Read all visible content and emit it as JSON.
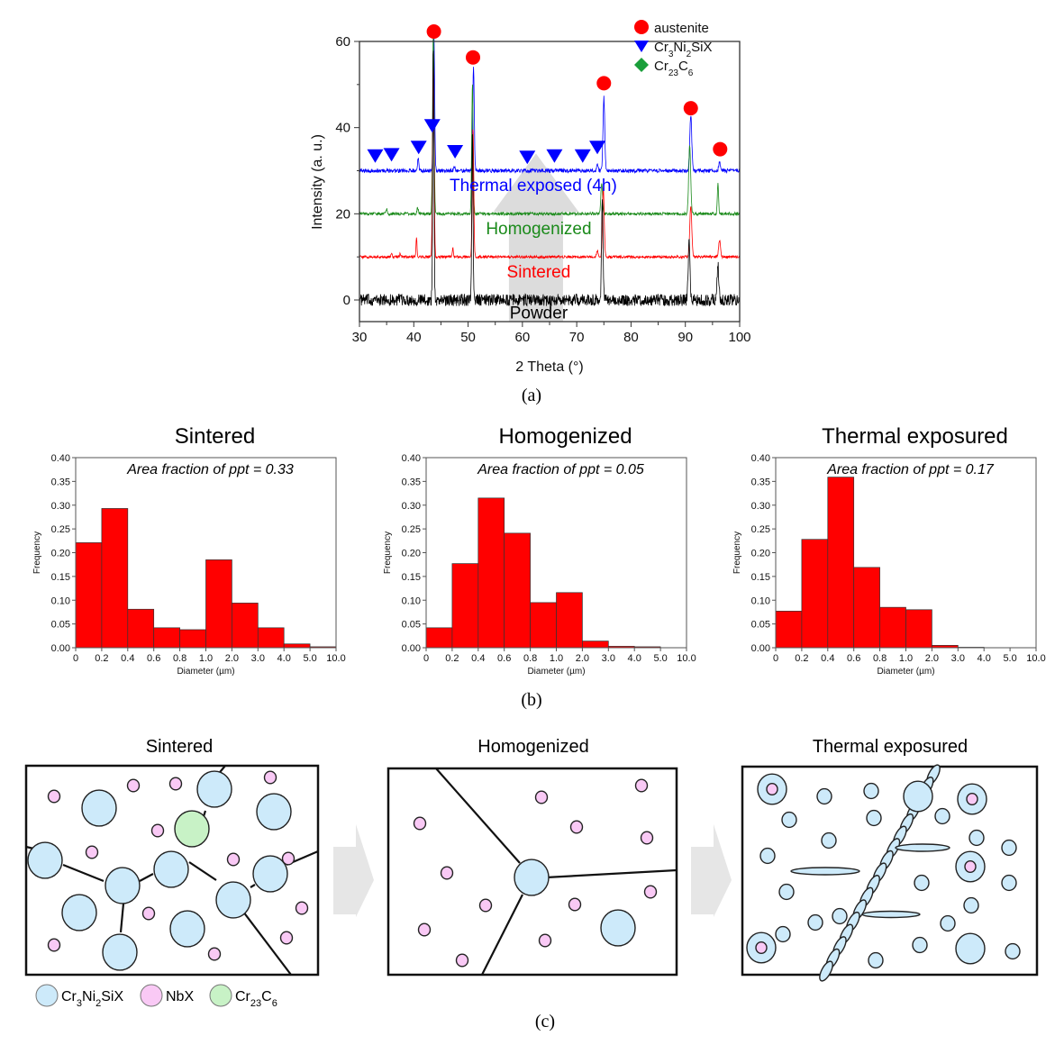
{
  "figure": {
    "captions": [
      "(a)",
      "(b)",
      "(c)"
    ]
  },
  "chart_data": [
    {
      "id": "xrd",
      "type": "line",
      "title": "",
      "xlabel": "2 Theta (°)",
      "ylabel": "Intensity (a. u.)",
      "xlim": [
        30,
        100
      ],
      "ylim": [
        -5,
        60
      ],
      "xticks": [
        30,
        40,
        50,
        60,
        70,
        80,
        90,
        100
      ],
      "yticks": [
        0,
        20,
        40,
        60
      ],
      "legend": {
        "placement": "top-right",
        "entries": [
          {
            "label": "austenite",
            "marker": "circle",
            "color": "#ff0000"
          },
          {
            "label_main": "Cr",
            "sub1": "3",
            "mid": "Ni",
            "sub2": "2",
            "tail": "SiX",
            "label": "Cr3Ni2SiX",
            "marker": "triangle-down",
            "color": "#0000ff"
          },
          {
            "label_main": "Cr",
            "sub1": "23",
            "mid": "C",
            "sub2": "6",
            "tail": "",
            "label": "Cr23C6",
            "marker": "diamond",
            "color": "#1a9e3a"
          }
        ]
      },
      "series": [
        {
          "name": "Powder",
          "color": "#000000",
          "offset": 0,
          "noise": 1.4,
          "peaks": [
            [
              43.6,
              60,
              0.25
            ],
            [
              50.8,
              40,
              0.25
            ],
            [
              74.7,
              24,
              0.3
            ],
            [
              90.7,
              14,
              0.35
            ],
            [
              96.0,
              8,
              0.35
            ]
          ]
        },
        {
          "name": "Sintered",
          "color": "#ff0000",
          "offset": 10,
          "noise": 0.3,
          "peaks": [
            [
              40.5,
              4.5,
              0.2
            ],
            [
              43.6,
              45,
              0.3
            ],
            [
              47.2,
              2,
              0.2
            ],
            [
              50.9,
              30,
              0.3
            ],
            [
              73.8,
              1.5,
              0.3
            ],
            [
              74.9,
              16,
              0.35
            ],
            [
              91.0,
              12,
              0.4
            ],
            [
              96.3,
              4,
              0.35
            ],
            [
              35.9,
              1,
              0.2
            ],
            [
              37.5,
              0.8,
              0.2
            ]
          ]
        },
        {
          "name": "Homogenized",
          "color": "#1a8a1a",
          "offset": 20,
          "noise": 0.35,
          "peaks": [
            [
              35.0,
              1,
              0.3
            ],
            [
              40.7,
              1.3,
              0.3
            ],
            [
              43.6,
              42,
              0.3
            ],
            [
              50.8,
              30,
              0.3
            ],
            [
              74.6,
              7,
              0.35
            ],
            [
              90.8,
              16,
              0.4
            ],
            [
              96.0,
              7,
              0.25
            ]
          ]
        },
        {
          "name": "Thermal exposed (4h)",
          "color": "#0000ff",
          "offset": 30,
          "noise": 0.45,
          "peaks": [
            [
              40.8,
              3,
              0.25
            ],
            [
              43.7,
              32,
              0.3
            ],
            [
              47.5,
              1,
              0.3
            ],
            [
              51.0,
              24,
              0.3
            ],
            [
              73.8,
              1.5,
              0.3
            ],
            [
              75.0,
              17,
              0.35
            ],
            [
              91.0,
              13,
              0.4
            ],
            [
              96.3,
              2,
              0.35
            ]
          ]
        }
      ],
      "series_labels": [
        {
          "text": "Thermal exposed (4h)",
          "color": "#0000ff",
          "x": 62,
          "y": 26.5
        },
        {
          "text": "Homogenized",
          "color": "#1a8a1a",
          "x": 63,
          "y": 16.5
        },
        {
          "text": "Sintered",
          "color": "#ff0000",
          "x": 63,
          "y": 6.5
        },
        {
          "text": "Powder",
          "color": "#000000",
          "x": 63,
          "y": -3
        }
      ],
      "phase_markers": {
        "austenite": [
          [
            43.7,
            62.3
          ],
          [
            50.9,
            56.3
          ],
          [
            75.0,
            50.3
          ],
          [
            91.0,
            44.5
          ],
          [
            96.4,
            35
          ]
        ],
        "Cr3Ni2SiX": [
          [
            32.9,
            33.5
          ],
          [
            35.9,
            33.8
          ],
          [
            40.9,
            35.5
          ],
          [
            43.4,
            40.5
          ],
          [
            47.6,
            34.5
          ],
          [
            60.9,
            33.2
          ],
          [
            65.9,
            33.5
          ],
          [
            71.1,
            33.5
          ],
          [
            73.8,
            35.5
          ]
        ]
      },
      "arrow": {
        "from_y": -5,
        "to_y": 34,
        "x": 62.5,
        "color": "#dcdcdc"
      }
    },
    {
      "id": "hist-sintered",
      "type": "bar",
      "title": "Sintered",
      "annotation": "Area fraction of ppt = 0.33",
      "xlabel": "Diameter (µm)",
      "ylabel": "Frequency",
      "categories": [
        "0-0.2",
        "0.2-0.4",
        "0.4-0.6",
        "0.6-0.8",
        "0.8-1.0",
        "1.0-2.0",
        "2.0-3.0",
        "3.0-4.0",
        "4.0-5.0",
        "5.0-10.0"
      ],
      "xticks": [
        "0",
        "0.2",
        "0.4",
        "0.6",
        "0.8",
        "1.0",
        "2.0",
        "3.0",
        "4.0",
        "5.0",
        "10.0"
      ],
      "values": [
        0.221,
        0.293,
        0.081,
        0.042,
        0.038,
        0.185,
        0.094,
        0.042,
        0.008,
        0.002
      ],
      "ylim": [
        0,
        0.4
      ],
      "yticks": [
        "0.00",
        "0.05",
        "0.10",
        "0.15",
        "0.20",
        "0.25",
        "0.30",
        "0.35",
        "0.40"
      ],
      "color": "#ff0000"
    },
    {
      "id": "hist-homogenized",
      "type": "bar",
      "title": "Homogenized",
      "annotation": "Area fraction of ppt = 0.05",
      "xlabel": "Diameter (µm)",
      "ylabel": "Frequency",
      "categories": [
        "0-0.2",
        "0.2-0.4",
        "0.4-0.6",
        "0.6-0.8",
        "0.8-1.0",
        "1.0-2.0",
        "2.0-3.0",
        "3.0-4.0",
        "4.0-5.0",
        "5.0-10.0"
      ],
      "xticks": [
        "0",
        "0.2",
        "0.4",
        "0.6",
        "0.8",
        "1.0",
        "2.0",
        "3.0",
        "4.0",
        "5.0",
        "10.0"
      ],
      "values": [
        0.042,
        0.177,
        0.315,
        0.241,
        0.095,
        0.116,
        0.014,
        0.003,
        0.002,
        0
      ],
      "ylim": [
        0,
        0.4
      ],
      "yticks": [
        "0.00",
        "0.05",
        "0.10",
        "0.15",
        "0.20",
        "0.25",
        "0.30",
        "0.35",
        "0.40"
      ],
      "color": "#ff0000"
    },
    {
      "id": "hist-thermal",
      "type": "bar",
      "title": "Thermal exposured",
      "annotation": "Area fraction of ppt = 0.17",
      "xlabel": "Diameter (µm)",
      "ylabel": "Frequency",
      "categories": [
        "0-0.2",
        "0.2-0.4",
        "0.4-0.6",
        "0.6-0.8",
        "0.8-1.0",
        "1.0-2.0",
        "2.0-3.0",
        "3.0-4.0",
        "4.0-5.0",
        "5.0-10.0"
      ],
      "xticks": [
        "0",
        "0.2",
        "0.4",
        "0.6",
        "0.8",
        "1.0",
        "2.0",
        "3.0",
        "4.0",
        "5.0",
        "10.0"
      ],
      "values": [
        0.077,
        0.228,
        0.359,
        0.169,
        0.085,
        0.08,
        0.005,
        0.001,
        0,
        0
      ],
      "ylim": [
        0,
        0.4
      ],
      "yticks": [
        "0.00",
        "0.05",
        "0.10",
        "0.15",
        "0.20",
        "0.25",
        "0.30",
        "0.35",
        "0.40"
      ],
      "color": "#ff0000"
    }
  ],
  "schematic": {
    "panels": [
      {
        "title": "Sintered"
      },
      {
        "title": "Homogenized"
      },
      {
        "title": "Thermal exposured"
      }
    ],
    "legend": [
      {
        "label": "Cr3Ni2SiX",
        "main": "Cr",
        "s1": "3",
        "mid": "Ni",
        "s2": "2",
        "tail": "SiX",
        "color": "#cdeafa"
      },
      {
        "label": "NbX",
        "main": "NbX",
        "s1": "",
        "mid": "",
        "s2": "",
        "tail": "",
        "color": "#f9c9f5"
      },
      {
        "label": "Cr23C6",
        "main": "Cr",
        "s1": "23",
        "mid": "C",
        "s2": "6",
        "tail": "",
        "color": "#c8f2c6"
      }
    ],
    "colors": {
      "cr3ni2six": "#cdeafa",
      "nbx": "#f9c9f5",
      "cr23c6": "#c8f2c6",
      "arrow": "#e6e6e6"
    }
  }
}
